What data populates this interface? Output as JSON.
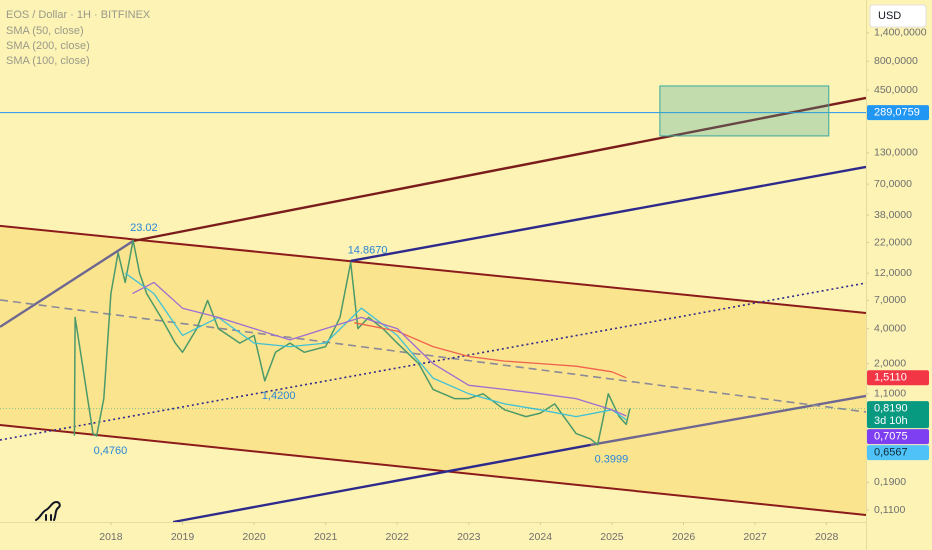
{
  "chart_data": {
    "type": "line",
    "title": "EOS / Dollar · 1H · BITFINEX",
    "currency": "USD",
    "background": "#fcf3b4",
    "log_scale": true,
    "xlim": [
      2016.45,
      2028.55
    ],
    "xticks": [
      2018,
      2019,
      2020,
      2021,
      2022,
      2023,
      2024,
      2025,
      2026,
      2027,
      2028
    ],
    "ylim": [
      0.0867,
      2690
    ],
    "yticks": [
      {
        "value": 1400,
        "label": "1,400,0000"
      },
      {
        "value": 800,
        "label": "800,0000"
      },
      {
        "value": 450,
        "label": "450,0000"
      },
      {
        "value": 130,
        "label": "130,0000"
      },
      {
        "value": 70,
        "label": "70,0000"
      },
      {
        "value": 38,
        "label": "38,0000"
      },
      {
        "value": 22,
        "label": "22,0000"
      },
      {
        "value": 12,
        "label": "12,0000"
      },
      {
        "value": 7,
        "label": "7,0000"
      },
      {
        "value": 4,
        "label": "4,0000"
      },
      {
        "value": 2,
        "label": "2,0000"
      },
      {
        "value": 1.1,
        "label": "1,1000"
      },
      {
        "value": 0.19,
        "label": "0,1900"
      },
      {
        "value": 0.11,
        "label": "0,1100"
      }
    ],
    "series": [
      {
        "color": "#4c9a6a",
        "x": [
          2017.49,
          2017.5,
          2017.6,
          2017.75,
          2017.8,
          2017.9,
          2018.0,
          2018.1,
          2018.2,
          2018.31,
          2018.4,
          2018.5,
          2018.7,
          2018.9,
          2019.0,
          2019.2,
          2019.35,
          2019.5,
          2019.8,
          2020.0,
          2020.15,
          2020.3,
          2020.5,
          2020.7,
          2021.0,
          2021.2,
          2021.35,
          2021.45,
          2021.6,
          2021.8,
          2022.0,
          2022.3,
          2022.5,
          2022.8,
          2023.0,
          2023.2,
          2023.5,
          2023.8,
          2024.0,
          2024.2,
          2024.5,
          2024.7,
          2024.8,
          2024.95,
          2025.1,
          2025.2,
          2025.25
        ],
        "values": [
          0.48,
          5.0,
          2.0,
          0.5,
          0.476,
          1.0,
          8,
          18,
          10,
          23.02,
          12,
          8,
          5,
          3,
          2.5,
          4,
          7,
          4,
          3,
          3.5,
          1.42,
          2.5,
          3,
          2.5,
          2.8,
          5,
          14.867,
          4,
          5,
          4,
          3,
          2,
          1.2,
          1.0,
          1.0,
          1.1,
          0.8,
          0.7,
          0.75,
          0.9,
          0.5,
          0.45,
          0.3999,
          1.1,
          0.7,
          0.6,
          0.819
        ]
      },
      {
        "name": "SMA (50, close)",
        "color": "#3fc1d6",
        "x": [
          2018.2,
          2018.6,
          2019.0,
          2019.5,
          2020.0,
          2020.5,
          2021.0,
          2021.5,
          2022.0,
          2022.5,
          2023.0,
          2023.5,
          2024.0,
          2024.5,
          2025.0,
          2025.2
        ],
        "values": [
          12,
          8,
          3.5,
          5,
          3,
          2.8,
          3,
          6,
          3.5,
          1.5,
          1.1,
          0.9,
          0.8,
          0.7,
          0.8,
          0.6567
        ]
      },
      {
        "name": "SMA (200, close)",
        "color": "#f0624d",
        "x": [
          2021.4,
          2022.0,
          2022.5,
          2023.0,
          2023.5,
          2024.0,
          2024.5,
          2025.0,
          2025.2
        ],
        "values": [
          4.5,
          3.8,
          2.8,
          2.3,
          2.1,
          2.0,
          1.9,
          1.7,
          1.511
        ]
      },
      {
        "name": "SMA (100, close)",
        "color": "#9c6fd0",
        "x": [
          2018.3,
          2018.6,
          2019.0,
          2019.5,
          2020.0,
          2020.5,
          2021.0,
          2021.5,
          2022.0,
          2022.5,
          2023.0,
          2023.5,
          2024.0,
          2024.5,
          2025.0,
          2025.2
        ],
        "values": [
          8,
          10,
          6,
          5,
          4,
          3.2,
          4,
          5,
          4,
          2,
          1.3,
          1.2,
          1.1,
          1.0,
          0.8,
          0.7075
        ]
      }
    ],
    "drawings": [
      {
        "kind": "channel",
        "x": [
          2016.45,
          2028.55
        ],
        "upper": [
          30.6,
          5.45
        ],
        "lower": [
          0.593,
          0.0997
        ],
        "color": "#8b1a1a",
        "fill": "#fbe48e"
      },
      {
        "kind": "line",
        "x": [
          2018.31,
          2028.55
        ],
        "values": [
          22.7,
          386
        ],
        "color": "#7b1c1c"
      },
      {
        "kind": "line",
        "x": [
          2021.35,
          2028.55
        ],
        "values": [
          15.3,
          98.4
        ],
        "color": "#2e2a8c"
      },
      {
        "kind": "line",
        "x": [
          2016.45,
          2018.31
        ],
        "values": [
          4.14,
          22.7
        ],
        "color": "#6e6790"
      },
      {
        "kind": "line",
        "x": [
          2024.7,
          2028.55
        ],
        "values": [
          0.399,
          1.053
        ],
        "color": "#6e6790"
      },
      {
        "kind": "line",
        "x": [
          2018.87,
          2024.7
        ],
        "values": [
          0.0867,
          0.399
        ],
        "color": "#2e2a8c"
      },
      {
        "kind": "line",
        "x": [
          2016.45,
          2028.55
        ],
        "values": [
          7.06,
          0.767
        ],
        "color": "#8a8a9a",
        "style": "dashed"
      },
      {
        "kind": "line",
        "x": [
          2016.45,
          2028.55
        ],
        "values": [
          0.44,
          9.88
        ],
        "color": "#2e2a8c",
        "style": "dotted"
      },
      {
        "kind": "hline",
        "value": 289.0759,
        "color": "#2196f3"
      },
      {
        "kind": "rect",
        "x": [
          2025.67,
          2028.03
        ],
        "values": [
          490,
          182
        ],
        "color": "#3aa8a0"
      }
    ],
    "annotations": [
      {
        "x": 2018.31,
        "value": 23.02,
        "label": "23.02",
        "position": "above"
      },
      {
        "x": 2021.35,
        "value": 14.867,
        "label": "14.8670",
        "position": "above"
      },
      {
        "x": 2020.15,
        "value": 1.42,
        "label": "1,4200",
        "position": "below"
      },
      {
        "x": 2017.8,
        "value": 0.476,
        "label": "0,4760",
        "position": "below"
      },
      {
        "x": 2024.8,
        "value": 0.3999,
        "label": "0.3999",
        "position": "below"
      }
    ],
    "annotation_color": "#2a86d8",
    "price_tags": [
      {
        "value": 289.0759,
        "label": "289,0759",
        "color": "#2196f3",
        "text_color": "#ffffff"
      },
      {
        "value": 1.511,
        "label": "1,5110",
        "color": "#f23645",
        "text_color": "#ffffff"
      },
      {
        "value": 0.819,
        "label": "0,8190",
        "color": "#089981",
        "text_color": "#ffffff",
        "countdown": "3d 10h"
      },
      {
        "value": 0.7075,
        "label": "0,7075",
        "color": "#7e3ff2",
        "text_color": "#ffffff"
      },
      {
        "value": 0.6567,
        "label": "0,6567",
        "color": "#4fc3f7",
        "text_color": "#0b2a3a"
      }
    ]
  }
}
